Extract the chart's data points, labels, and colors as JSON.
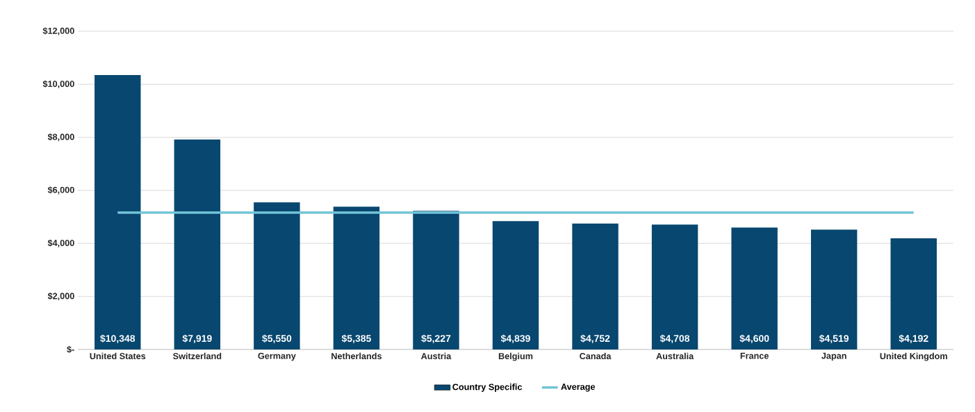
{
  "chart_data": {
    "type": "bar",
    "categories": [
      "United States",
      "Switzerland",
      "Germany",
      "Netherlands",
      "Austria",
      "Belgium",
      "Canada",
      "Australia",
      "France",
      "Japan",
      "United Kingdom"
    ],
    "series": [
      {
        "name": "Country Specific",
        "color": "#08476f",
        "values": [
          10348,
          7919,
          5550,
          5385,
          5227,
          4839,
          4752,
          4708,
          4600,
          4519,
          4192
        ],
        "value_labels": [
          "$10,348",
          "$7,919",
          "$5,550",
          "$5,385",
          "$5,227",
          "$4,839",
          "$4,752",
          "$4,708",
          "$4,600",
          "$4,519",
          "$4,192"
        ]
      },
      {
        "name": "Average",
        "type": "line",
        "marker": "none",
        "color": "#72c4d8",
        "values": [
          5160,
          5160,
          5160,
          5160,
          5160,
          5160,
          5160,
          5160,
          5160,
          5160,
          5160
        ]
      }
    ],
    "ylim": [
      0,
      12000
    ],
    "yticks": [
      {
        "value": 0,
        "label": "$-"
      },
      {
        "value": 2000,
        "label": "$2,000"
      },
      {
        "value": 4000,
        "label": "$4,000"
      },
      {
        "value": 6000,
        "label": "$6,000"
      },
      {
        "value": 8000,
        "label": "$8,000"
      },
      {
        "value": 10000,
        "label": "$10,000"
      },
      {
        "value": 12000,
        "label": "$12,000"
      }
    ],
    "grid": "y",
    "legend": "bottom"
  }
}
